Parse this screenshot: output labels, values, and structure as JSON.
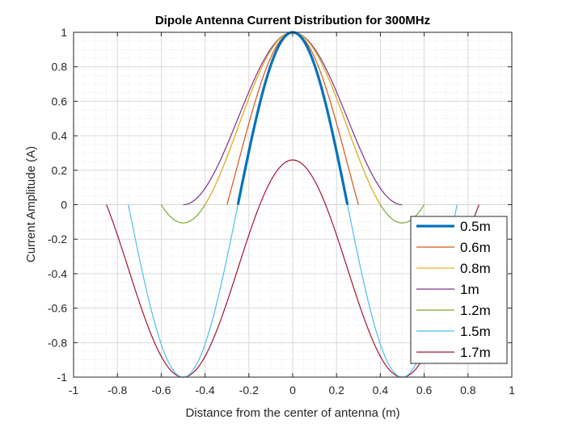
{
  "chart_data": {
    "type": "line",
    "title": "Dipole Antenna Current Distribution for 300MHz",
    "xlabel": "Distance from the center of antenna (m)",
    "ylabel": "Current Amplitude (A)",
    "xlim": [
      -1,
      1
    ],
    "ylim": [
      -1,
      1
    ],
    "x_ticks": [
      -1,
      -0.8,
      -0.6,
      -0.4,
      -0.2,
      0,
      0.2,
      0.4,
      0.6,
      0.8,
      1
    ],
    "x_tick_labels": [
      "-1",
      "-0.8",
      "-0.6",
      "-0.4",
      "-0.2",
      "0",
      "0.2",
      "0.4",
      "0.6",
      "0.8",
      "1"
    ],
    "y_ticks": [
      -1,
      -0.8,
      -0.6,
      -0.4,
      -0.2,
      0,
      0.2,
      0.4,
      0.6,
      0.8,
      1
    ],
    "y_tick_labels": [
      "-1",
      "-0.8",
      "-0.6",
      "-0.4",
      "-0.2",
      "0",
      "0.2",
      "0.4",
      "0.6",
      "0.8",
      "1"
    ],
    "grid": true,
    "minor_grid": true,
    "legend_position": "bottom-right",
    "series": [
      {
        "name": "0.5m",
        "length": 0.5,
        "color": "#0072BD",
        "emphasized": true
      },
      {
        "name": "0.6m",
        "length": 0.6,
        "color": "#D95319",
        "emphasized": false
      },
      {
        "name": "0.8m",
        "length": 0.8,
        "color": "#EDB120",
        "emphasized": false
      },
      {
        "name": "1m",
        "length": 1.0,
        "color": "#7E2F8E",
        "emphasized": false
      },
      {
        "name": "1.2m",
        "length": 1.2,
        "color": "#77AC30",
        "emphasized": false
      },
      {
        "name": "1.5m",
        "length": 1.5,
        "color": "#4DBEEE",
        "emphasized": false
      },
      {
        "name": "1.7m",
        "length": 1.7,
        "color": "#A2142F",
        "emphasized": false
      }
    ]
  }
}
